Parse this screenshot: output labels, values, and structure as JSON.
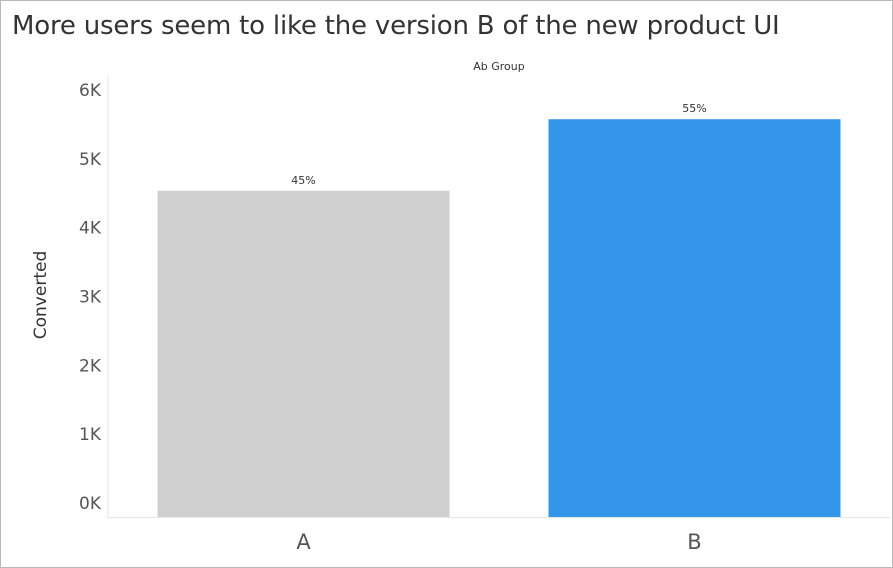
{
  "chart_data": {
    "type": "bar",
    "title": "More users seem to like the version B of the new product UI",
    "column_header": "Ab Group",
    "ylabel": "Converted",
    "xlabel": "",
    "categories": [
      "A",
      "B"
    ],
    "values": [
      4550,
      5590
    ],
    "data_labels": [
      "45%",
      "55%"
    ],
    "colors": [
      "#cfcfcf",
      "#3396e8"
    ],
    "ylim": [
      0,
      6000
    ],
    "yticks": [
      0,
      1000,
      2000,
      3000,
      4000,
      5000,
      6000
    ],
    "ytick_labels": [
      "0K",
      "1K",
      "2K",
      "3K",
      "4K",
      "5K",
      "6K"
    ],
    "grid": false,
    "legend": "none"
  }
}
